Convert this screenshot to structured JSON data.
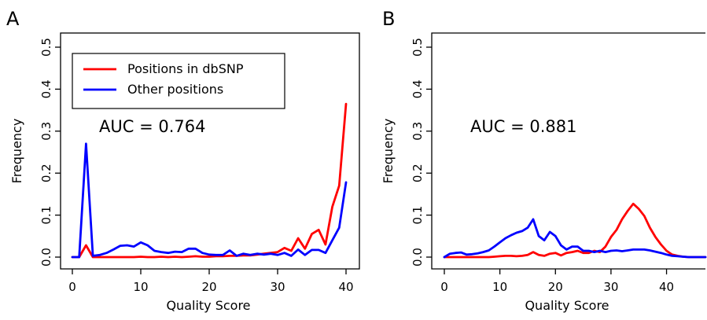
{
  "chart_data": [
    {
      "panel": "A",
      "type": "line",
      "xlabel": "Quality Score",
      "ylabel": "Frequency",
      "xlim": [
        0,
        40
      ],
      "ylim": [
        0,
        0.5
      ],
      "xticks": [
        0,
        10,
        20,
        30,
        40
      ],
      "yticks": [
        0.0,
        0.1,
        0.2,
        0.3,
        0.4,
        0.5
      ],
      "annotation": "AUC = 0.764",
      "legend": {
        "position": "top-left",
        "entries": [
          "Positions in dbSNP",
          "Other positions"
        ]
      },
      "series": [
        {
          "name": "Positions in dbSNP",
          "color": "#ff0000",
          "x": [
            0,
            1,
            2,
            3,
            4,
            5,
            6,
            7,
            8,
            9,
            10,
            11,
            12,
            13,
            14,
            15,
            16,
            17,
            18,
            19,
            20,
            21,
            22,
            23,
            24,
            25,
            26,
            27,
            28,
            29,
            30,
            31,
            32,
            33,
            34,
            35,
            36,
            37,
            38,
            39,
            40
          ],
          "y": [
            0,
            0,
            0.028,
            0,
            0,
            0,
            0,
            0,
            0,
            0,
            0.001,
            0,
            0,
            0.001,
            0,
            0.001,
            0,
            0.001,
            0.002,
            0.001,
            0.001,
            0.002,
            0.002,
            0.003,
            0.003,
            0.004,
            0.004,
            0.006,
            0.008,
            0.01,
            0.012,
            0.022,
            0.015,
            0.045,
            0.02,
            0.055,
            0.065,
            0.03,
            0.12,
            0.17,
            0.365
          ]
        },
        {
          "name": "Other positions",
          "color": "#0000ff",
          "x": [
            0,
            1,
            2,
            3,
            4,
            5,
            6,
            7,
            8,
            9,
            10,
            11,
            12,
            13,
            14,
            15,
            16,
            17,
            18,
            19,
            20,
            21,
            22,
            23,
            24,
            25,
            26,
            27,
            28,
            29,
            30,
            31,
            32,
            33,
            34,
            35,
            36,
            37,
            38,
            39,
            40
          ],
          "y": [
            0,
            0,
            0.27,
            0.003,
            0.005,
            0.01,
            0.018,
            0.027,
            0.028,
            0.025,
            0.035,
            0.028,
            0.015,
            0.012,
            0.01,
            0.013,
            0.012,
            0.02,
            0.02,
            0.01,
            0.006,
            0.005,
            0.005,
            0.016,
            0.003,
            0.008,
            0.005,
            0.008,
            0.006,
            0.008,
            0.005,
            0.01,
            0.003,
            0.018,
            0.005,
            0.017,
            0.017,
            0.01,
            0.04,
            0.07,
            0.178
          ]
        }
      ]
    },
    {
      "panel": "B",
      "type": "line",
      "xlabel": "Quality Score",
      "ylabel": "Frequency",
      "xlim": [
        0,
        47
      ],
      "ylim": [
        0,
        0.5
      ],
      "xticks": [
        0,
        10,
        20,
        30,
        40
      ],
      "yticks": [
        0.0,
        0.1,
        0.2,
        0.3,
        0.4,
        0.5
      ],
      "annotation": "AUC = 0.881",
      "series": [
        {
          "name": "Positions in dbSNP",
          "color": "#ff0000",
          "x": [
            0,
            1,
            2,
            3,
            4,
            5,
            6,
            7,
            8,
            9,
            10,
            11,
            12,
            13,
            14,
            15,
            16,
            17,
            18,
            19,
            20,
            21,
            22,
            23,
            24,
            25,
            26,
            27,
            28,
            29,
            30,
            31,
            32,
            33,
            34,
            35,
            36,
            37,
            38,
            39,
            40,
            41,
            42,
            43,
            44,
            45,
            46,
            47
          ],
          "y": [
            0,
            0,
            0,
            0,
            0,
            0,
            0,
            0,
            0,
            0.001,
            0.002,
            0.003,
            0.003,
            0.002,
            0.003,
            0.005,
            0.012,
            0.005,
            0.003,
            0.008,
            0.01,
            0.004,
            0.01,
            0.012,
            0.015,
            0.01,
            0.01,
            0.015,
            0.012,
            0.025,
            0.048,
            0.065,
            0.09,
            0.11,
            0.127,
            0.115,
            0.098,
            0.07,
            0.048,
            0.03,
            0.015,
            0.006,
            0.003,
            0.001,
            0,
            0,
            0,
            0
          ]
        },
        {
          "name": "Other positions",
          "color": "#0000ff",
          "x": [
            0,
            1,
            2,
            3,
            4,
            5,
            6,
            7,
            8,
            9,
            10,
            11,
            12,
            13,
            14,
            15,
            16,
            17,
            18,
            19,
            20,
            21,
            22,
            23,
            24,
            25,
            26,
            27,
            28,
            29,
            30,
            31,
            32,
            33,
            34,
            35,
            36,
            37,
            38,
            39,
            40,
            41,
            42,
            43,
            44,
            45,
            46,
            47
          ],
          "y": [
            0,
            0.008,
            0.01,
            0.011,
            0.006,
            0.007,
            0.009,
            0.012,
            0.016,
            0.025,
            0.035,
            0.045,
            0.052,
            0.058,
            0.062,
            0.07,
            0.09,
            0.05,
            0.04,
            0.06,
            0.05,
            0.028,
            0.018,
            0.025,
            0.025,
            0.015,
            0.015,
            0.012,
            0.015,
            0.012,
            0.015,
            0.016,
            0.014,
            0.016,
            0.018,
            0.018,
            0.018,
            0.016,
            0.013,
            0.01,
            0.006,
            0.003,
            0.002,
            0.001,
            0,
            0,
            0,
            0
          ]
        }
      ]
    }
  ]
}
